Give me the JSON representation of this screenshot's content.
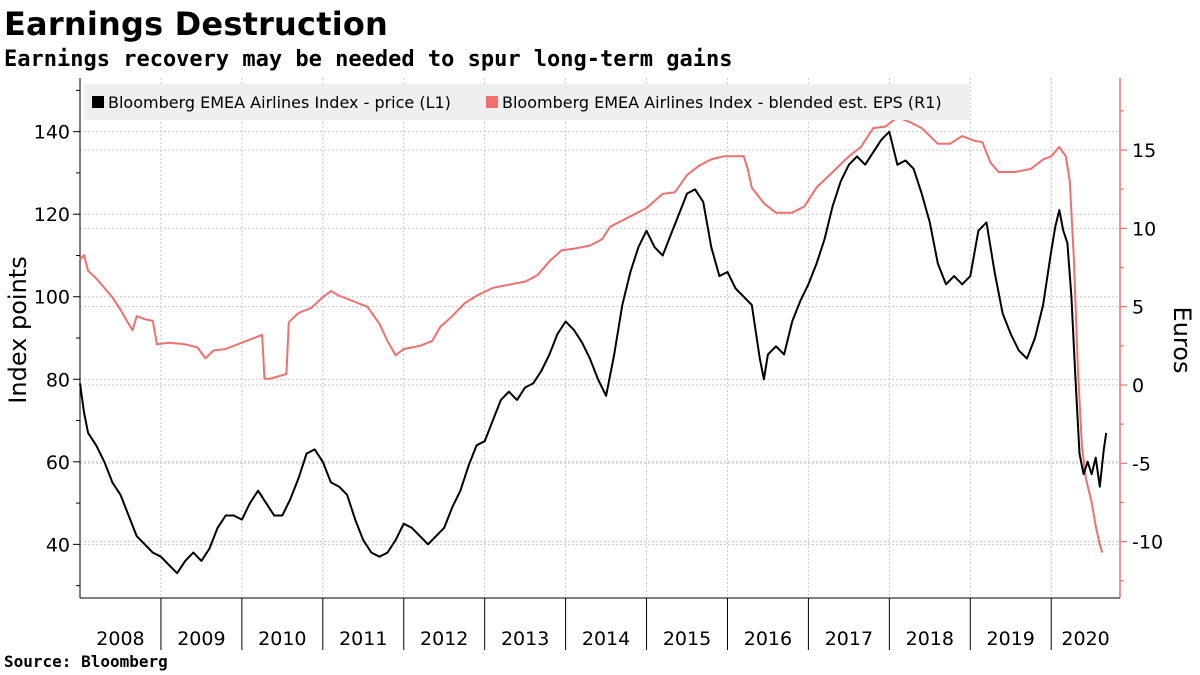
{
  "header": {
    "title": "Earnings Destruction",
    "subtitle": "Earnings recovery may be needed to spur long-term gains"
  },
  "footer": {
    "source": "Source: Bloomberg"
  },
  "chart_data": {
    "type": "line",
    "grid": true,
    "legend_placement": "top-left",
    "x_categories": [
      "2008",
      "2009",
      "2010",
      "2011",
      "2012",
      "2013",
      "2014",
      "2015",
      "2016",
      "2017",
      "2018",
      "2019",
      "2020"
    ],
    "y_left": {
      "label": "Index points",
      "range": [
        27,
        153
      ],
      "ticks": [
        40,
        60,
        80,
        100,
        120,
        140
      ]
    },
    "y_right": {
      "label": "Euros",
      "range": [
        -13.6,
        19.6
      ],
      "ticks": [
        -10,
        -5,
        0,
        5,
        10,
        15
      ]
    },
    "series": [
      {
        "name": "Bloomberg EMEA Airlines Index - price (L1)",
        "axis": "left",
        "color": "#000000",
        "points": [
          [
            2008.0,
            79
          ],
          [
            2008.05,
            72
          ],
          [
            2008.1,
            67
          ],
          [
            2008.2,
            64
          ],
          [
            2008.3,
            60
          ],
          [
            2008.4,
            55
          ],
          [
            2008.5,
            52
          ],
          [
            2008.6,
            47
          ],
          [
            2008.7,
            42
          ],
          [
            2008.8,
            40
          ],
          [
            2008.9,
            38
          ],
          [
            2009.0,
            37
          ],
          [
            2009.1,
            35
          ],
          [
            2009.2,
            33
          ],
          [
            2009.3,
            36
          ],
          [
            2009.4,
            38
          ],
          [
            2009.5,
            36
          ],
          [
            2009.6,
            39
          ],
          [
            2009.7,
            44
          ],
          [
            2009.8,
            47
          ],
          [
            2009.9,
            47
          ],
          [
            2010.0,
            46
          ],
          [
            2010.1,
            50
          ],
          [
            2010.2,
            53
          ],
          [
            2010.3,
            50
          ],
          [
            2010.4,
            47
          ],
          [
            2010.5,
            47
          ],
          [
            2010.6,
            51
          ],
          [
            2010.7,
            56
          ],
          [
            2010.8,
            62
          ],
          [
            2010.9,
            63
          ],
          [
            2011.0,
            60
          ],
          [
            2011.1,
            55
          ],
          [
            2011.2,
            54
          ],
          [
            2011.3,
            52
          ],
          [
            2011.4,
            46
          ],
          [
            2011.5,
            41
          ],
          [
            2011.6,
            38
          ],
          [
            2011.7,
            37
          ],
          [
            2011.8,
            38
          ],
          [
            2011.9,
            41
          ],
          [
            2012.0,
            45
          ],
          [
            2012.1,
            44
          ],
          [
            2012.2,
            42
          ],
          [
            2012.3,
            40
          ],
          [
            2012.4,
            42
          ],
          [
            2012.5,
            44
          ],
          [
            2012.6,
            49
          ],
          [
            2012.7,
            53
          ],
          [
            2012.8,
            59
          ],
          [
            2012.9,
            64
          ],
          [
            2013.0,
            65
          ],
          [
            2013.1,
            70
          ],
          [
            2013.2,
            75
          ],
          [
            2013.3,
            77
          ],
          [
            2013.4,
            75
          ],
          [
            2013.5,
            78
          ],
          [
            2013.6,
            79
          ],
          [
            2013.7,
            82
          ],
          [
            2013.8,
            86
          ],
          [
            2013.9,
            91
          ],
          [
            2014.0,
            94
          ],
          [
            2014.1,
            92
          ],
          [
            2014.2,
            89
          ],
          [
            2014.3,
            85
          ],
          [
            2014.4,
            80
          ],
          [
            2014.5,
            76
          ],
          [
            2014.6,
            86
          ],
          [
            2014.7,
            98
          ],
          [
            2014.8,
            106
          ],
          [
            2014.9,
            112
          ],
          [
            2015.0,
            116
          ],
          [
            2015.1,
            112
          ],
          [
            2015.2,
            110
          ],
          [
            2015.3,
            115
          ],
          [
            2015.4,
            120
          ],
          [
            2015.5,
            125
          ],
          [
            2015.6,
            126
          ],
          [
            2015.7,
            123
          ],
          [
            2015.8,
            112
          ],
          [
            2015.9,
            105
          ],
          [
            2016.0,
            106
          ],
          [
            2016.1,
            102
          ],
          [
            2016.2,
            100
          ],
          [
            2016.3,
            98
          ],
          [
            2016.4,
            85
          ],
          [
            2016.45,
            80
          ],
          [
            2016.5,
            86
          ],
          [
            2016.6,
            88
          ],
          [
            2016.7,
            86
          ],
          [
            2016.8,
            94
          ],
          [
            2016.9,
            99
          ],
          [
            2017.0,
            103
          ],
          [
            2017.1,
            108
          ],
          [
            2017.2,
            114
          ],
          [
            2017.3,
            122
          ],
          [
            2017.4,
            128
          ],
          [
            2017.5,
            132
          ],
          [
            2017.6,
            134
          ],
          [
            2017.7,
            132
          ],
          [
            2017.8,
            135
          ],
          [
            2017.9,
            138
          ],
          [
            2018.0,
            140
          ],
          [
            2018.1,
            132
          ],
          [
            2018.2,
            133
          ],
          [
            2018.3,
            131
          ],
          [
            2018.4,
            125
          ],
          [
            2018.5,
            118
          ],
          [
            2018.6,
            108
          ],
          [
            2018.7,
            103
          ],
          [
            2018.8,
            105
          ],
          [
            2018.9,
            103
          ],
          [
            2019.0,
            105
          ],
          [
            2019.1,
            116
          ],
          [
            2019.2,
            118
          ],
          [
            2019.3,
            106
          ],
          [
            2019.4,
            96
          ],
          [
            2019.5,
            91
          ],
          [
            2019.6,
            87
          ],
          [
            2019.7,
            85
          ],
          [
            2019.8,
            90
          ],
          [
            2019.9,
            98
          ],
          [
            2020.0,
            111
          ],
          [
            2020.05,
            117
          ],
          [
            2020.1,
            121
          ],
          [
            2020.15,
            116
          ],
          [
            2020.2,
            113
          ],
          [
            2020.25,
            100
          ],
          [
            2020.3,
            80
          ],
          [
            2020.35,
            62
          ],
          [
            2020.4,
            57
          ],
          [
            2020.45,
            60
          ],
          [
            2020.5,
            57
          ],
          [
            2020.55,
            61
          ],
          [
            2020.6,
            54
          ],
          [
            2020.65,
            63
          ],
          [
            2020.68,
            67
          ]
        ]
      },
      {
        "name": "Bloomberg EMEA Airlines Index - blended est. EPS (R1)",
        "axis": "right",
        "color": "#f07070",
        "points": [
          [
            2008.0,
            8.0
          ],
          [
            2008.05,
            8.3
          ],
          [
            2008.1,
            7.3
          ],
          [
            2008.2,
            6.8
          ],
          [
            2008.3,
            6.2
          ],
          [
            2008.4,
            5.6
          ],
          [
            2008.5,
            4.8
          ],
          [
            2008.6,
            3.9
          ],
          [
            2008.65,
            3.5
          ],
          [
            2008.7,
            4.4
          ],
          [
            2008.8,
            4.2
          ],
          [
            2008.9,
            4.1
          ],
          [
            2008.95,
            2.6
          ],
          [
            2009.1,
            2.7
          ],
          [
            2009.3,
            2.6
          ],
          [
            2009.45,
            2.4
          ],
          [
            2009.55,
            1.7
          ],
          [
            2009.65,
            2.2
          ],
          [
            2009.8,
            2.3
          ],
          [
            2009.95,
            2.6
          ],
          [
            2010.1,
            2.9
          ],
          [
            2010.25,
            3.2
          ],
          [
            2010.28,
            0.4
          ],
          [
            2010.35,
            0.4
          ],
          [
            2010.55,
            0.7
          ],
          [
            2010.58,
            4.0
          ],
          [
            2010.7,
            4.6
          ],
          [
            2010.85,
            4.9
          ],
          [
            2011.0,
            5.6
          ],
          [
            2011.1,
            6.0
          ],
          [
            2011.2,
            5.7
          ],
          [
            2011.4,
            5.3
          ],
          [
            2011.55,
            5.0
          ],
          [
            2011.7,
            3.9
          ],
          [
            2011.8,
            2.8
          ],
          [
            2011.9,
            1.9
          ],
          [
            2012.0,
            2.3
          ],
          [
            2012.2,
            2.5
          ],
          [
            2012.35,
            2.8
          ],
          [
            2012.45,
            3.7
          ],
          [
            2012.6,
            4.4
          ],
          [
            2012.75,
            5.2
          ],
          [
            2012.9,
            5.7
          ],
          [
            2013.1,
            6.2
          ],
          [
            2013.3,
            6.4
          ],
          [
            2013.5,
            6.6
          ],
          [
            2013.65,
            7.0
          ],
          [
            2013.8,
            7.9
          ],
          [
            2013.95,
            8.6
          ],
          [
            2014.1,
            8.7
          ],
          [
            2014.3,
            8.9
          ],
          [
            2014.45,
            9.3
          ],
          [
            2014.55,
            10.1
          ],
          [
            2014.7,
            10.5
          ],
          [
            2014.85,
            10.9
          ],
          [
            2015.0,
            11.3
          ],
          [
            2015.2,
            12.2
          ],
          [
            2015.35,
            12.3
          ],
          [
            2015.5,
            13.4
          ],
          [
            2015.65,
            14.0
          ],
          [
            2015.8,
            14.4
          ],
          [
            2015.95,
            14.6
          ],
          [
            2016.2,
            14.6
          ],
          [
            2016.25,
            13.8
          ],
          [
            2016.3,
            12.6
          ],
          [
            2016.45,
            11.6
          ],
          [
            2016.6,
            11.0
          ],
          [
            2016.8,
            11.0
          ],
          [
            2016.95,
            11.4
          ],
          [
            2017.1,
            12.6
          ],
          [
            2017.3,
            13.6
          ],
          [
            2017.5,
            14.6
          ],
          [
            2017.65,
            15.2
          ],
          [
            2017.8,
            16.4
          ],
          [
            2017.95,
            16.5
          ],
          [
            2018.1,
            17.1
          ],
          [
            2018.25,
            16.8
          ],
          [
            2018.4,
            16.4
          ],
          [
            2018.6,
            15.4
          ],
          [
            2018.75,
            15.4
          ],
          [
            2018.9,
            15.9
          ],
          [
            2019.05,
            15.6
          ],
          [
            2019.15,
            15.5
          ],
          [
            2019.25,
            14.2
          ],
          [
            2019.35,
            13.6
          ],
          [
            2019.55,
            13.6
          ],
          [
            2019.75,
            13.8
          ],
          [
            2019.9,
            14.4
          ],
          [
            2020.0,
            14.6
          ],
          [
            2020.1,
            15.2
          ],
          [
            2020.18,
            14.6
          ],
          [
            2020.23,
            13.0
          ],
          [
            2020.28,
            8.0
          ],
          [
            2020.33,
            1.0
          ],
          [
            2020.38,
            -4.0
          ],
          [
            2020.43,
            -6.0
          ],
          [
            2020.5,
            -7.5
          ],
          [
            2020.55,
            -9.0
          ],
          [
            2020.6,
            -10.2
          ],
          [
            2020.63,
            -10.7
          ]
        ]
      }
    ]
  }
}
